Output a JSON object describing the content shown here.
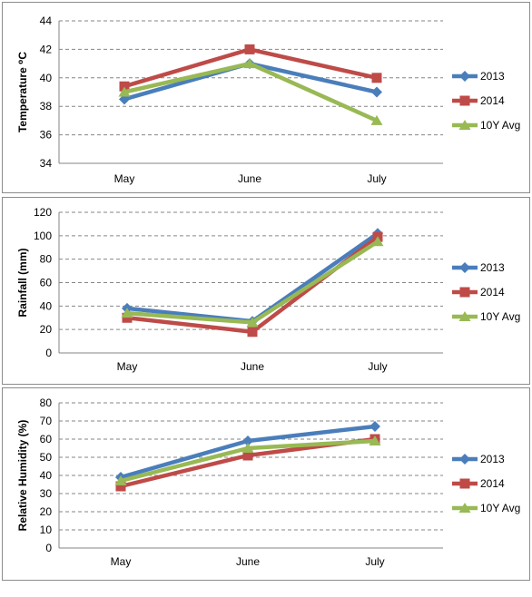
{
  "chart_data": [
    {
      "type": "line",
      "categories": [
        "May",
        "June",
        "July"
      ],
      "ylabel": "Temperature ⁰C",
      "ylim": [
        34,
        44
      ],
      "yticks": [
        34,
        36,
        38,
        40,
        42,
        44
      ],
      "grid": "horizontal-dashed",
      "legend": "right",
      "series": [
        {
          "name": "2013",
          "values": [
            38.5,
            41,
            39
          ],
          "color": "#4a7ebb",
          "marker": "diamond"
        },
        {
          "name": "2014",
          "values": [
            39.4,
            42,
            40
          ],
          "color": "#be4b48",
          "marker": "square"
        },
        {
          "name": "10Y Avg",
          "values": [
            39,
            41,
            37
          ],
          "color": "#98b954",
          "marker": "triangle"
        }
      ]
    },
    {
      "type": "line",
      "categories": [
        "May",
        "June",
        "July"
      ],
      "ylabel": "Rainfall (mm)",
      "ylim": [
        0,
        120
      ],
      "yticks": [
        0,
        20,
        40,
        60,
        80,
        100,
        120
      ],
      "grid": "horizontal-dashed",
      "legend": "right",
      "series": [
        {
          "name": "2013",
          "values": [
            38,
            27,
            102
          ],
          "color": "#4a7ebb",
          "marker": "diamond"
        },
        {
          "name": "2014",
          "values": [
            30,
            18,
            99
          ],
          "color": "#be4b48",
          "marker": "square"
        },
        {
          "name": "10Y Avg",
          "values": [
            34,
            26,
            95
          ],
          "color": "#98b954",
          "marker": "triangle"
        }
      ]
    },
    {
      "type": "line",
      "categories": [
        "May",
        "June",
        "July"
      ],
      "ylabel": "Relative Humidity (%)",
      "ylim": [
        0,
        80
      ],
      "yticks": [
        0,
        10,
        20,
        30,
        40,
        50,
        60,
        70,
        80
      ],
      "grid": "horizontal-dashed",
      "legend": "right",
      "series": [
        {
          "name": "2013",
          "values": [
            39,
            59,
            67
          ],
          "color": "#4a7ebb",
          "marker": "diamond"
        },
        {
          "name": "2014",
          "values": [
            34,
            51,
            60
          ],
          "color": "#be4b48",
          "marker": "square"
        },
        {
          "name": "10Y Avg",
          "values": [
            37,
            55,
            59
          ],
          "color": "#98b954",
          "marker": "triangle"
        }
      ]
    }
  ]
}
